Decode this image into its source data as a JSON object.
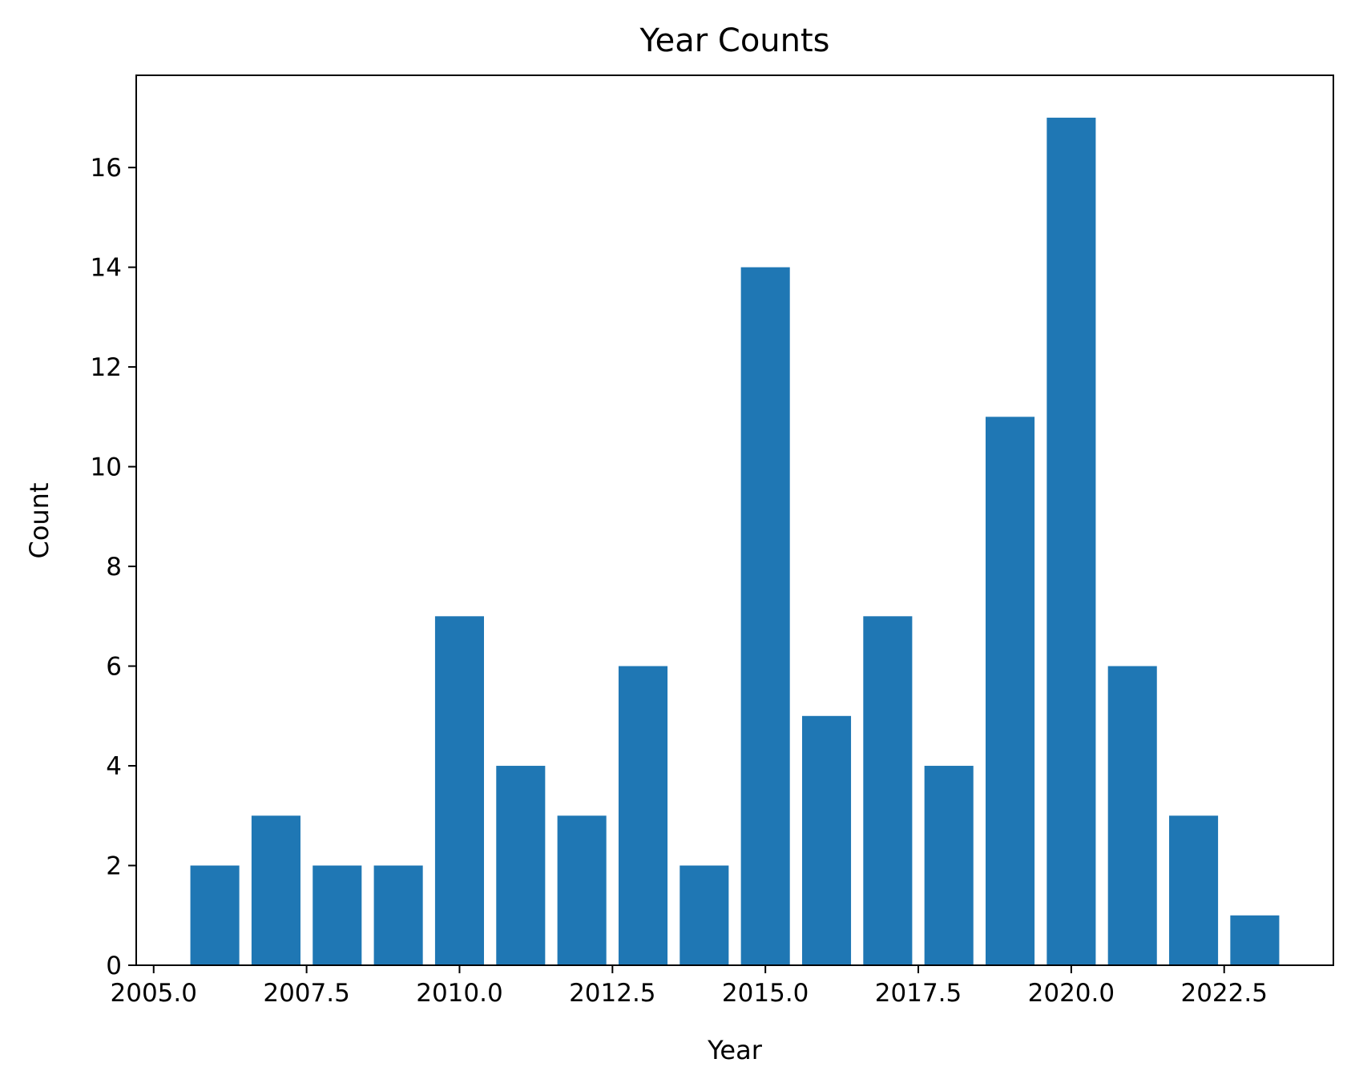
{
  "chart_data": {
    "type": "bar",
    "title": "Year Counts",
    "xlabel": "Year",
    "ylabel": "Count",
    "x": [
      2006,
      2007,
      2008,
      2009,
      2010,
      2011,
      2012,
      2013,
      2014,
      2015,
      2016,
      2017,
      2018,
      2019,
      2020,
      2021,
      2022,
      2023
    ],
    "values": [
      2,
      3,
      2,
      2,
      7,
      4,
      3,
      6,
      2,
      14,
      5,
      7,
      4,
      11,
      17,
      6,
      3,
      1
    ],
    "bar_width": 0.8,
    "xlim": [
      2004.715,
      2024.285
    ],
    "ylim": [
      0,
      17.85
    ],
    "xticks": [
      2005.0,
      2007.5,
      2010.0,
      2012.5,
      2015.0,
      2017.5,
      2020.0,
      2022.5
    ],
    "xtick_labels": [
      "2005.0",
      "2007.5",
      "2010.0",
      "2012.5",
      "2015.0",
      "2017.5",
      "2020.0",
      "2022.5"
    ],
    "yticks": [
      0,
      2,
      4,
      6,
      8,
      10,
      12,
      14,
      16
    ],
    "ytick_labels": [
      "0",
      "2",
      "4",
      "6",
      "8",
      "10",
      "12",
      "14",
      "16"
    ],
    "grid": false,
    "bar_color": "#1f77b4"
  }
}
